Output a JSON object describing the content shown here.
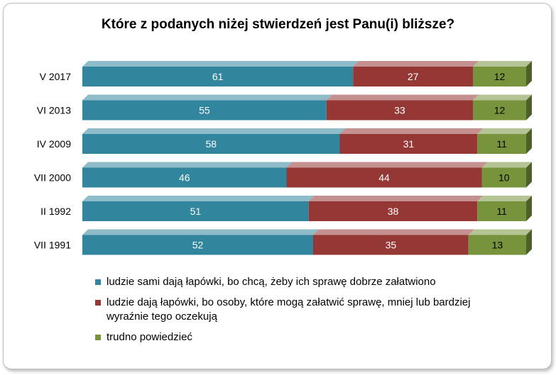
{
  "chart_data": {
    "type": "bar",
    "orientation": "horizontal",
    "stacked": true,
    "title": "Które z podanych niżej stwierdzeń jest Panu(i) bliższe?",
    "categories": [
      "V 2017",
      "VI 2013",
      "IV 2009",
      "VII 2000",
      "II 1992",
      "VII 1991"
    ],
    "series": [
      {
        "name": "ludzie sami dają łapówki, bo chcą, żeby ich sprawę dobrze załatwiono",
        "color": "#31859c",
        "values": [
          61,
          55,
          58,
          46,
          51,
          52
        ]
      },
      {
        "name": "ludzie dają łapówki, bo osoby, które mogą załatwić sprawę, mniej lub bardziej wyraźnie tego oczekują",
        "color": "#953735",
        "values": [
          27,
          33,
          31,
          44,
          38,
          35
        ]
      },
      {
        "name": "trudno powiedzieć",
        "color": "#77933c",
        "values": [
          12,
          12,
          11,
          10,
          11,
          13
        ]
      }
    ],
    "xlim": [
      0,
      100
    ],
    "grid": false,
    "legend_position": "bottom"
  }
}
